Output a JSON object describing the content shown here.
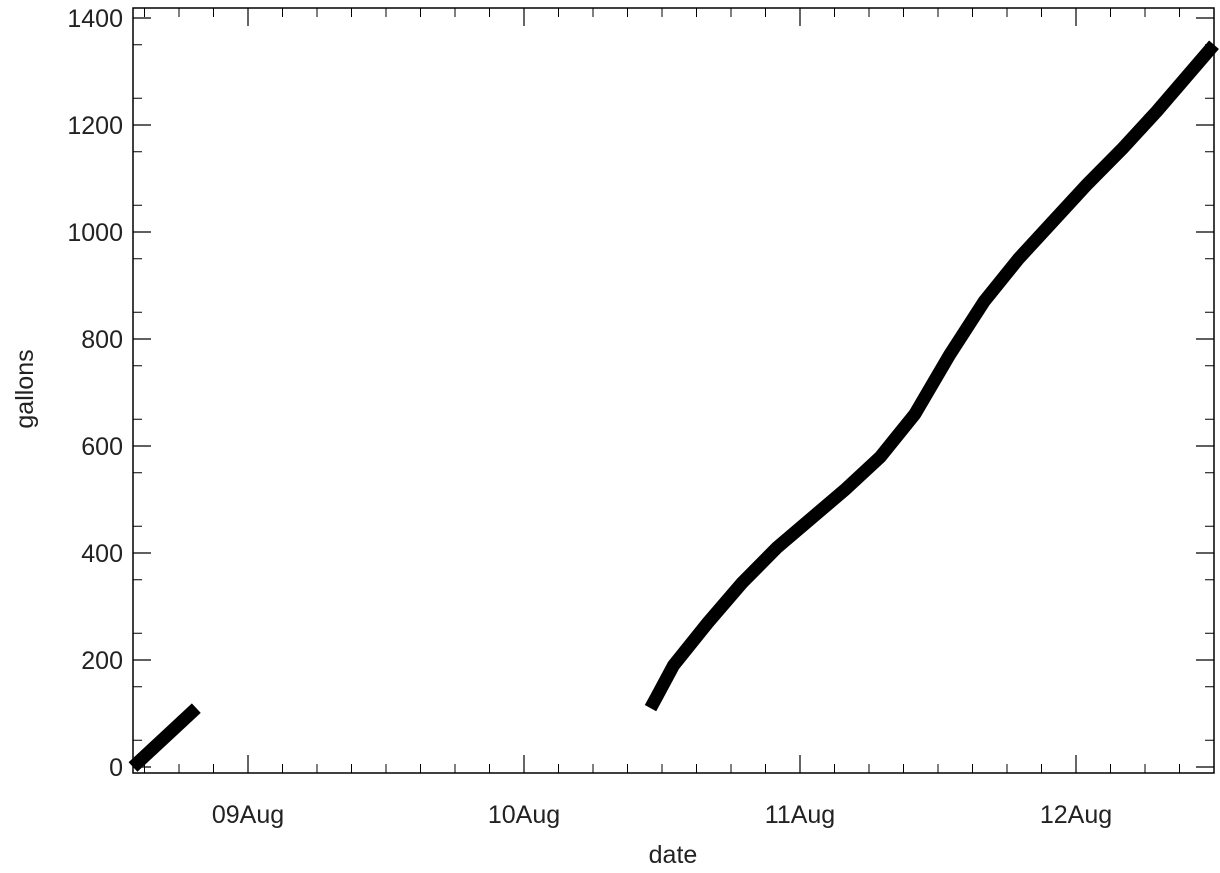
{
  "chart_data": {
    "type": "line",
    "title": "",
    "xlabel": "date",
    "ylabel": "gallons",
    "ylim": [
      0,
      1400
    ],
    "xlim": [
      "2023-08-08T14:00",
      "2023-08-12T12:00"
    ],
    "x_ticks": [
      {
        "value": "2023-08-09T00:00",
        "label": "09Aug"
      },
      {
        "value": "2023-08-10T00:00",
        "label": "10Aug"
      },
      {
        "value": "2023-08-11T00:00",
        "label": "11Aug"
      },
      {
        "value": "2023-08-12T00:00",
        "label": "12Aug"
      }
    ],
    "y_ticks": [
      {
        "value": 0,
        "label": "0"
      },
      {
        "value": 200,
        "label": "200"
      },
      {
        "value": 400,
        "label": "400"
      },
      {
        "value": 600,
        "label": "600"
      },
      {
        "value": 800,
        "label": "800"
      },
      {
        "value": 1000,
        "label": "1000"
      },
      {
        "value": 1200,
        "label": "1200"
      },
      {
        "value": 1400,
        "label": "1400"
      }
    ],
    "grid": false,
    "legend": "none",
    "line_color": "#000000",
    "series": [
      {
        "segments": [
          {
            "x": [
              "2023-08-08T14:00",
              "2023-08-08T16:00",
              "2023-08-08T18:00",
              "2023-08-08T19:30"
            ],
            "y": [
              0,
              40,
              80,
              110
            ]
          },
          {
            "x": [
              "2023-08-10T11:00",
              "2023-08-10T11:30",
              "2023-08-10T13:00",
              "2023-08-10T16:00",
              "2023-08-10T19:00",
              "2023-08-10T22:00",
              "2023-08-11T01:00",
              "2023-08-11T04:00",
              "2023-08-11T07:00",
              "2023-08-11T10:00",
              "2023-08-11T13:00",
              "2023-08-11T16:00",
              "2023-08-11T19:00",
              "2023-08-11T22:00",
              "2023-08-12T01:00",
              "2023-08-12T04:00",
              "2023-08-12T07:00",
              "2023-08-12T10:00",
              "2023-08-12T12:00"
            ],
            "y": [
              110,
              130,
              190,
              270,
              345,
              410,
              465,
              520,
              580,
              660,
              770,
              870,
              950,
              1020,
              1090,
              1155,
              1225,
              1300,
              1350
            ]
          }
        ]
      }
    ]
  }
}
